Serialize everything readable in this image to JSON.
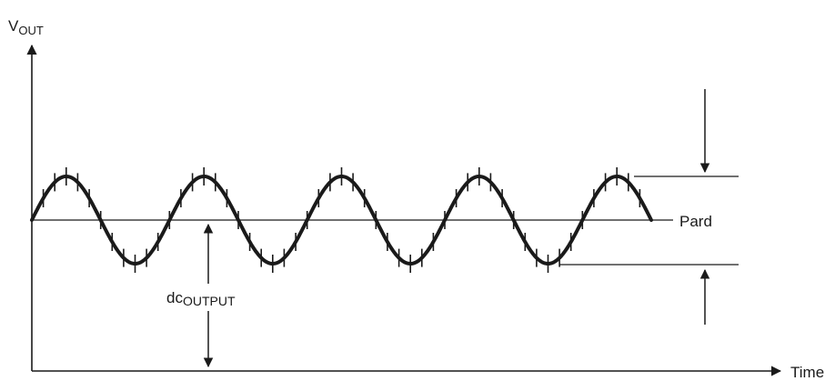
{
  "labels": {
    "y_axis_main": "V",
    "y_axis_sub": "OUT",
    "x_axis": "Time",
    "pard": "Pard",
    "dc_main": "dc",
    "dc_sub": "OUTPUT"
  },
  "waveform": {
    "cycles": 4.5,
    "ripple_ticks_per_cycle": 12
  },
  "colors": {
    "stroke": "#1a1a1a",
    "background": "#ffffff"
  }
}
